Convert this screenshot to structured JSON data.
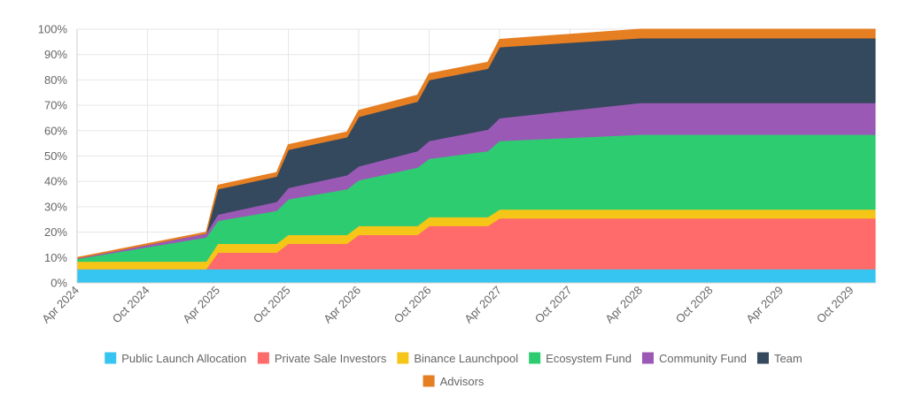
{
  "chart_data": {
    "type": "area",
    "stacked": true,
    "title": "",
    "xlabel": "",
    "ylabel": "",
    "ylim": [
      0,
      100
    ],
    "y_unit": "%",
    "y_ticks": [
      "0%",
      "10%",
      "20%",
      "30%",
      "40%",
      "50%",
      "60%",
      "70%",
      "80%",
      "90%",
      "100%"
    ],
    "x_ticks": [
      "Apr 2024",
      "Oct 2024",
      "Apr 2025",
      "Oct 2025",
      "Apr 2026",
      "Oct 2026",
      "Apr 2027",
      "Oct 2027",
      "Apr 2028",
      "Oct 2028",
      "Apr 2029",
      "Oct 2029"
    ],
    "grid": true,
    "legend_position": "bottom",
    "x": [
      "2024-04",
      "2025-03",
      "2025-04",
      "2025-09",
      "2025-10",
      "2026-03",
      "2026-04",
      "2026-09",
      "2026-10",
      "2027-03",
      "2027-04",
      "2028-04",
      "2029-12"
    ],
    "series": [
      {
        "name": "Public Launch Allocation",
        "color": "#36c5f0",
        "values": [
          5.5,
          5.5,
          5.5,
          5.5,
          5.5,
          5.5,
          5.5,
          5.5,
          5.5,
          5.5,
          5.5,
          5.5,
          5.5
        ]
      },
      {
        "name": "Private Sale Investors",
        "color": "#ff6b6b",
        "values": [
          0,
          0,
          6.5,
          6.5,
          10,
          10,
          13.5,
          13.5,
          17,
          17,
          20,
          20,
          20
        ]
      },
      {
        "name": "Binance Launchpool",
        "color": "#f5c518",
        "values": [
          3,
          3,
          3.5,
          3.5,
          3.5,
          3.5,
          3.5,
          3.5,
          3.5,
          3.5,
          3.5,
          3.5,
          3.5
        ]
      },
      {
        "name": "Ecosystem Fund",
        "color": "#2ecc71",
        "values": [
          1,
          9.5,
          9,
          13,
          14,
          18,
          18,
          23,
          23,
          26,
          27,
          29.5,
          29.5
        ]
      },
      {
        "name": "Community Fund",
        "color": "#9b59b6",
        "values": [
          0.2,
          1.5,
          2.5,
          3.5,
          4.5,
          5.5,
          5.5,
          6.5,
          7,
          8.5,
          9,
          12.5,
          12.5
        ]
      },
      {
        "name": "Team",
        "color": "#34495e",
        "values": [
          0,
          0,
          10,
          10,
          15,
          15,
          19.5,
          19.5,
          24,
          24,
          28,
          25.5,
          25.5
        ]
      },
      {
        "name": "Advisors",
        "color": "#e67e22",
        "values": [
          0.3,
          0.5,
          1.5,
          1.5,
          2,
          2,
          2.5,
          2.5,
          2.5,
          2.5,
          3,
          3.5,
          3.5
        ]
      }
    ]
  }
}
